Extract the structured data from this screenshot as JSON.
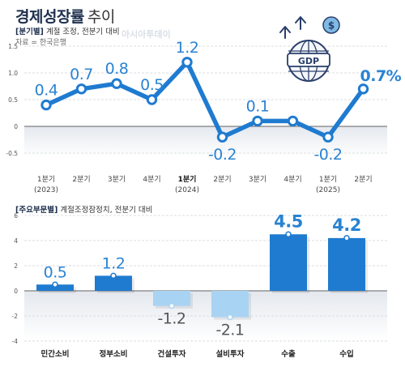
{
  "header": {
    "title_bold": "경제성장률",
    "title_light": "추이",
    "tag1": "[분기별]",
    "note1": "계절 조정, 전분기 대비",
    "source": "자료 = 한국은행",
    "watermark": "아시아투데이"
  },
  "section2": {
    "tag": "[주요부문별]",
    "note": "계절조정잠정치, 전분기 대비"
  },
  "icon_label": "GDP",
  "colors": {
    "line": "#1f7bd0",
    "bar_pos": "#1f7bd0",
    "bar_neg": "#a9d3f2",
    "label": "#2a83d2",
    "zero_line": "#333333"
  },
  "chart_data": [
    {
      "type": "line",
      "title": "경제성장률 추이",
      "categories": [
        "1분기",
        "2분기",
        "3분기",
        "4분기",
        "1분기",
        "2분기",
        "3분기",
        "4분기",
        "1분기",
        "2분기"
      ],
      "year_labels": [
        "(2023)",
        "",
        "",
        "",
        "(2024)",
        "",
        "",
        "",
        "(2025)",
        ""
      ],
      "series": [
        {
          "values": [
            0.4,
            0.7,
            0.8,
            0.5,
            1.2,
            -0.2,
            0.1,
            0.1,
            -0.2,
            0.7
          ]
        }
      ],
      "value_labels": [
        "0.4",
        "0.7",
        "0.8",
        "0.5",
        "1.2",
        "-0.2",
        "0.1",
        "",
        "-0.2",
        "0.7%"
      ],
      "yticks": [
        "1.5",
        "1.0",
        "0.5",
        "0",
        "-0.5"
      ],
      "ylim": [
        -0.5,
        1.5
      ],
      "grid": true
    },
    {
      "type": "bar",
      "categories": [
        "민간소비",
        "정부소비",
        "건설투자",
        "설비투자",
        "수출",
        "수입"
      ],
      "values": [
        0.5,
        1.2,
        -1.2,
        -2.1,
        4.5,
        4.2
      ],
      "value_labels": [
        "0.5",
        "1.2",
        "-1.2",
        "-2.1",
        "4.5",
        "4.2"
      ],
      "yticks": [
        "6",
        "4",
        "2",
        "0",
        "-2",
        "-4"
      ],
      "ylim": [
        -4,
        6
      ],
      "grid": true
    }
  ]
}
